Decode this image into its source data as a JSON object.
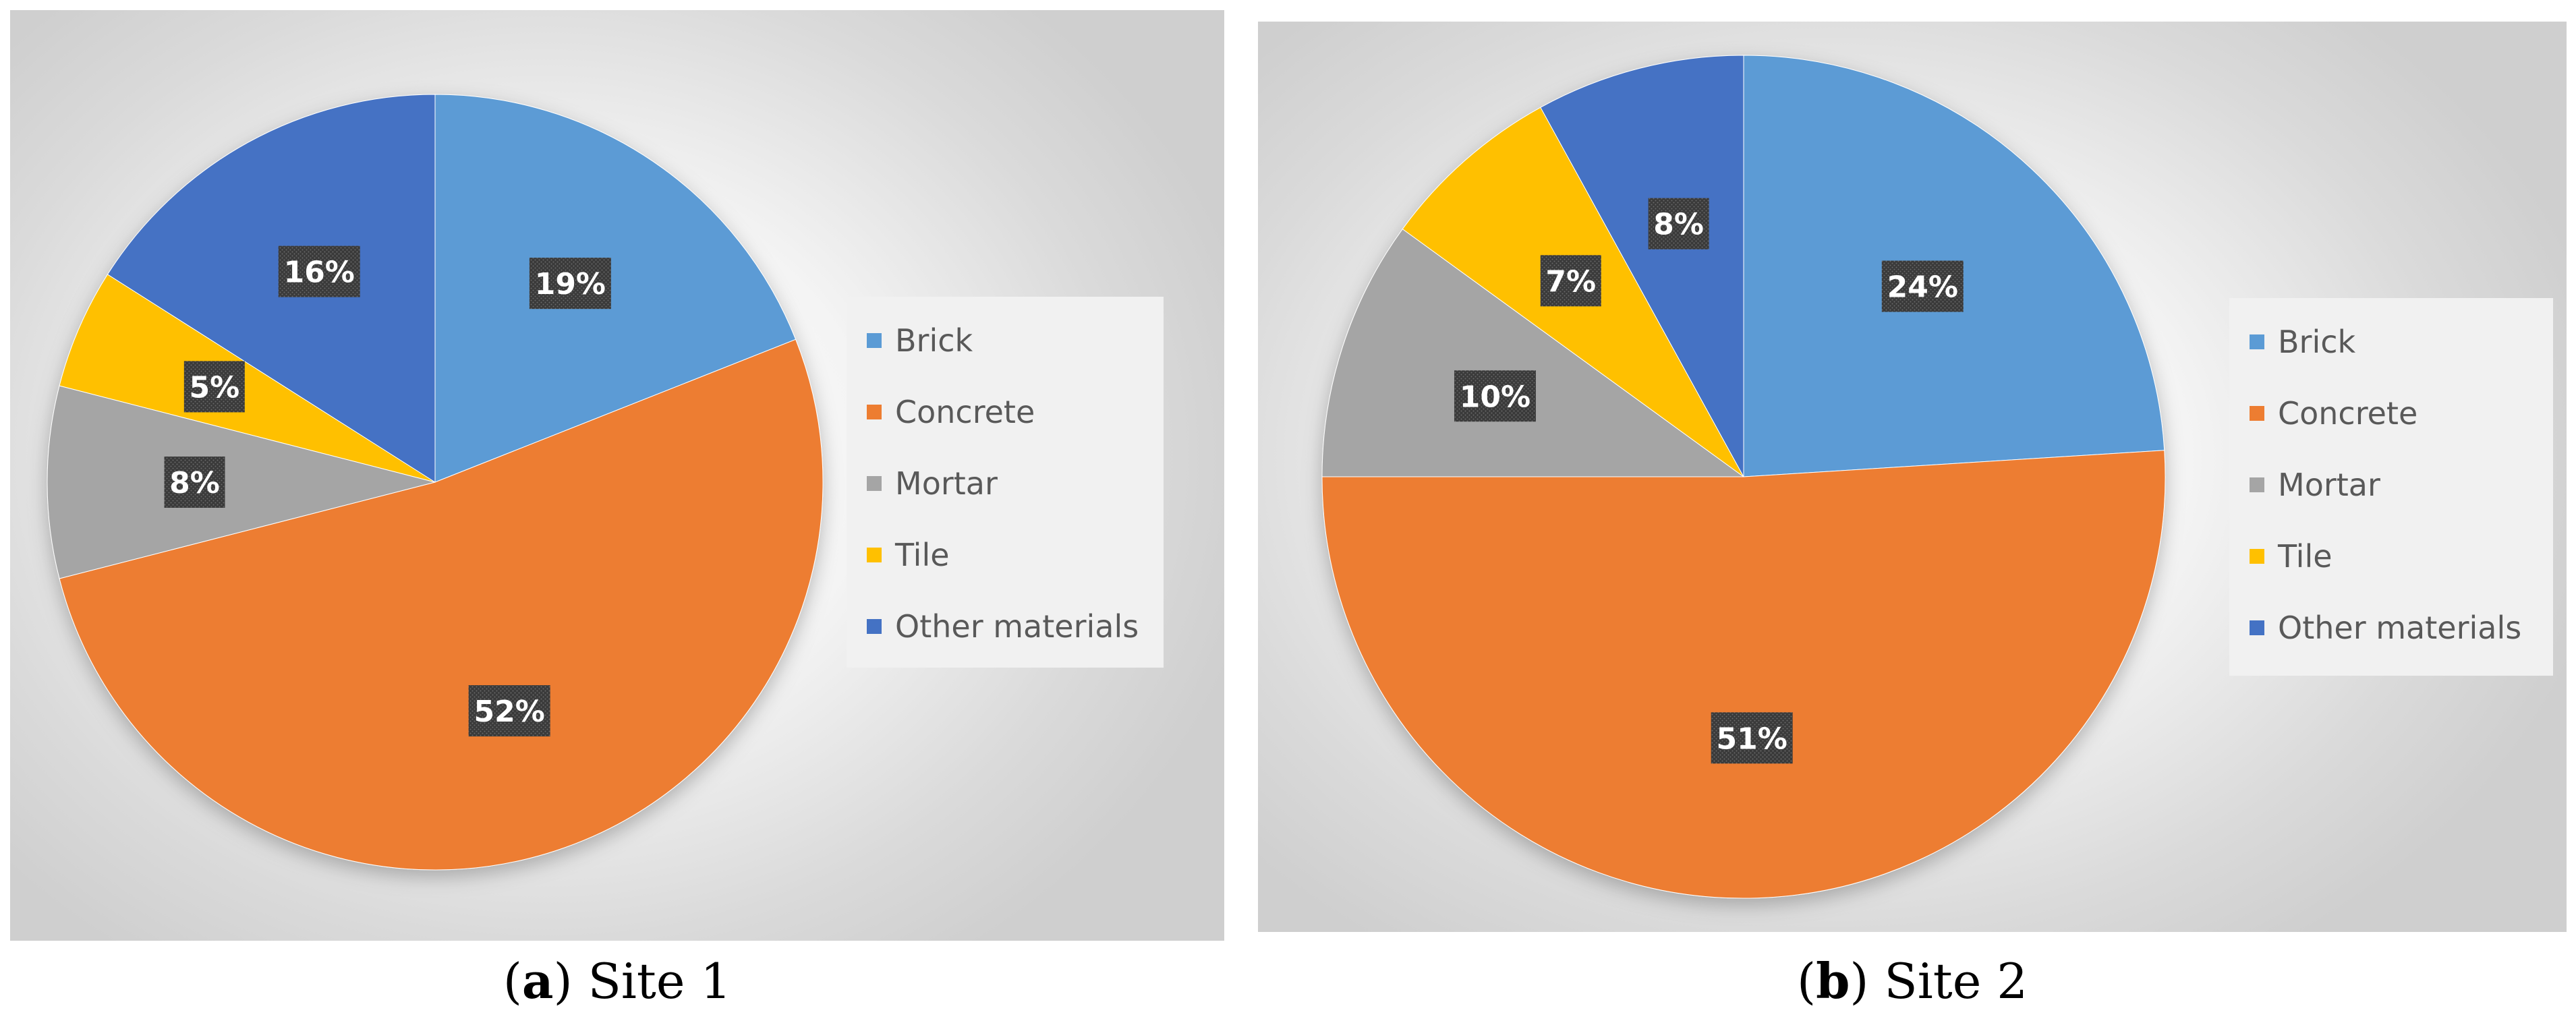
{
  "chart_data": [
    {
      "type": "pie",
      "caption_letter": "a",
      "caption_text": "Site 1",
      "categories": [
        "Brick",
        "Concrete",
        "Mortar",
        "Tile",
        "Other materials"
      ],
      "values": [
        19,
        52,
        8,
        5,
        16
      ],
      "data_labels": [
        "19%",
        "52%",
        "8%",
        "5%",
        "16%"
      ],
      "colors": [
        "#5B9BD5",
        "#ED7D31",
        "#A5A5A5",
        "#FFC000",
        "#4472C4"
      ],
      "start_angle": "12 o'clock",
      "direction": "clockwise",
      "legend_position": "right"
    },
    {
      "type": "pie",
      "caption_letter": "b",
      "caption_text": "Site 2",
      "categories": [
        "Brick",
        "Concrete",
        "Mortar",
        "Tile",
        "Other materials"
      ],
      "values": [
        24,
        51,
        10,
        7,
        8
      ],
      "data_labels": [
        "24%",
        "51%",
        "10%",
        "7%",
        "8%"
      ],
      "colors": [
        "#5B9BD5",
        "#ED7D31",
        "#A5A5A5",
        "#FFC000",
        "#4472C4"
      ],
      "start_angle": "12 o'clock",
      "direction": "clockwise",
      "legend_position": "right"
    }
  ]
}
